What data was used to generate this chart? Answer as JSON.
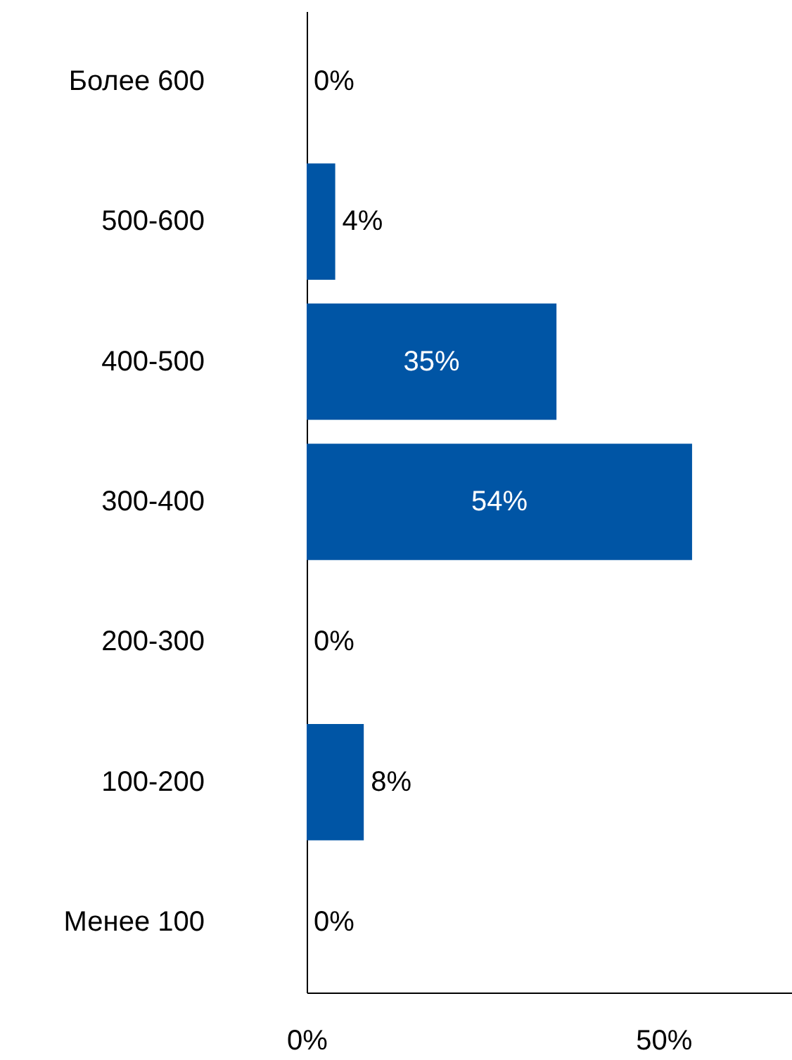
{
  "chart_data": {
    "type": "bar",
    "orientation": "horizontal",
    "categories": [
      "Более 600",
      "500-600",
      "400-500",
      "300-400",
      "200-300",
      "100-200",
      "Менее 100"
    ],
    "values": [
      0,
      4,
      35,
      54,
      0,
      8,
      0
    ],
    "value_labels": [
      "0%",
      "4%",
      "35%",
      "54%",
      "0%",
      "8%",
      "0%"
    ],
    "color": "#0055a5",
    "xlim": [
      0,
      68
    ],
    "xticks": [
      {
        "value": 0,
        "label": "0%"
      },
      {
        "value": 50,
        "label": "50%"
      }
    ],
    "grid": false
  }
}
